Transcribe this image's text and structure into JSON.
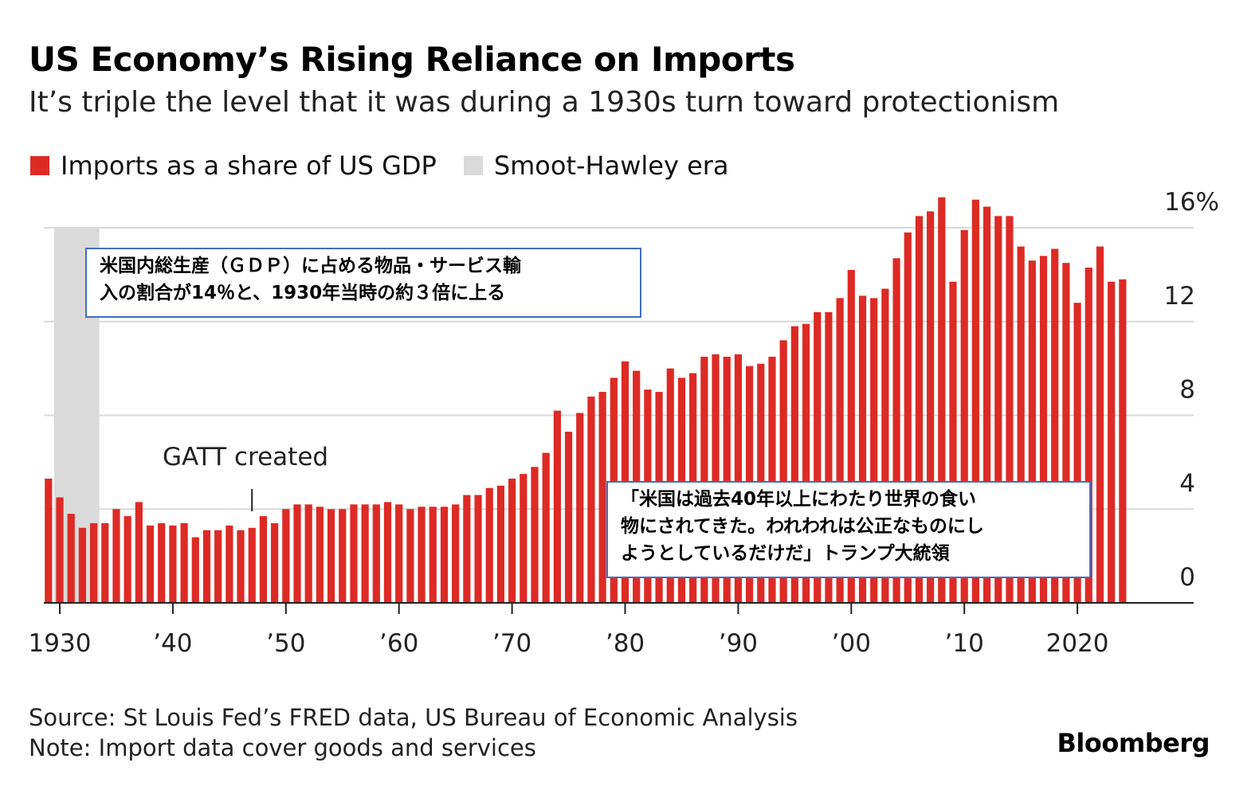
{
  "header": {
    "title": "US Economy’s Rising Reliance on Imports",
    "subtitle": "It’s triple the level that it was during a 1930s turn toward protectionism"
  },
  "legend": {
    "series_label": "Imports as a share of US GDP",
    "shade_label": "Smoot-Hawley era"
  },
  "colors": {
    "bar": "#dd2a25",
    "shade": "#dadada",
    "grid": "#d9d9d9",
    "callout_border": "#3f6fc3"
  },
  "chart_data": {
    "type": "bar",
    "title": "US Economy’s Rising Reliance on Imports",
    "subtitle": "It’s triple the level that it was during a 1930s turn toward protectionism",
    "series": [
      {
        "name": "Imports as a share of US GDP",
        "x": [
          1929,
          1930,
          1931,
          1932,
          1933,
          1934,
          1935,
          1936,
          1937,
          1938,
          1939,
          1940,
          1941,
          1942,
          1943,
          1944,
          1945,
          1946,
          1947,
          1948,
          1949,
          1950,
          1951,
          1952,
          1953,
          1954,
          1955,
          1956,
          1957,
          1958,
          1959,
          1960,
          1961,
          1962,
          1963,
          1964,
          1965,
          1966,
          1967,
          1968,
          1969,
          1970,
          1971,
          1972,
          1973,
          1974,
          1975,
          1976,
          1977,
          1978,
          1979,
          1980,
          1981,
          1982,
          1983,
          1984,
          1985,
          1986,
          1987,
          1988,
          1989,
          1990,
          1991,
          1992,
          1993,
          1994,
          1995,
          1996,
          1997,
          1998,
          1999,
          2000,
          2001,
          2002,
          2003,
          2004,
          2005,
          2006,
          2007,
          2008,
          2009,
          2010,
          2011,
          2012,
          2013,
          2014,
          2015,
          2016,
          2017,
          2018,
          2019,
          2020,
          2021,
          2022,
          2023,
          2024
        ],
        "values": [
          5.3,
          4.5,
          3.8,
          3.2,
          3.4,
          3.4,
          4.0,
          3.7,
          4.3,
          3.3,
          3.4,
          3.3,
          3.4,
          2.8,
          3.1,
          3.1,
          3.3,
          3.1,
          3.2,
          3.7,
          3.4,
          4.0,
          4.2,
          4.2,
          4.1,
          4.0,
          4.0,
          4.2,
          4.2,
          4.2,
          4.3,
          4.2,
          4.0,
          4.1,
          4.1,
          4.1,
          4.2,
          4.6,
          4.6,
          4.9,
          5.0,
          5.3,
          5.5,
          5.8,
          6.4,
          8.2,
          7.3,
          8.1,
          8.8,
          9.0,
          9.6,
          10.3,
          9.9,
          9.1,
          9.0,
          10.0,
          9.6,
          9.8,
          10.5,
          10.6,
          10.5,
          10.6,
          10.1,
          10.2,
          10.5,
          11.2,
          11.8,
          11.9,
          12.4,
          12.4,
          13.0,
          14.2,
          13.1,
          13.0,
          13.4,
          14.7,
          15.8,
          16.5,
          16.7,
          17.3,
          13.7,
          15.9,
          17.2,
          16.9,
          16.5,
          16.5,
          15.2,
          14.6,
          14.8,
          15.1,
          14.5,
          12.8,
          14.3,
          15.2,
          13.7,
          13.8
        ]
      }
    ],
    "shaded_band": {
      "label": "Smoot-Hawley era",
      "from": 1929.5,
      "to": 1933.5
    },
    "x_ticks": [
      {
        "value": 1930,
        "label": "1930"
      },
      {
        "value": 1940,
        "label": "’40"
      },
      {
        "value": 1950,
        "label": "’50"
      },
      {
        "value": 1960,
        "label": "’60"
      },
      {
        "value": 1970,
        "label": "’70"
      },
      {
        "value": 1980,
        "label": "’80"
      },
      {
        "value": 1990,
        "label": "’90"
      },
      {
        "value": 2000,
        "label": "’00"
      },
      {
        "value": 2010,
        "label": "’10"
      },
      {
        "value": 2020,
        "label": "2020"
      }
    ],
    "y_ticks": [
      {
        "value": 0,
        "label": "0"
      },
      {
        "value": 4,
        "label": "4"
      },
      {
        "value": 8,
        "label": "8"
      },
      {
        "value": 12,
        "label": "12"
      },
      {
        "value": 16,
        "label": "16%"
      }
    ],
    "ylim": [
      0,
      16.5
    ],
    "xlim": [
      1928.5,
      2026.5
    ],
    "grid": true,
    "y_axis_side": "right",
    "annotations": [
      {
        "text": "GATT created",
        "x": 1947
      }
    ]
  },
  "callouts": {
    "top": "米国内総生産（ＧＤＰ）に占める物品・サービス輸\n入の割合が14％と、1930年当時の約３倍に上る",
    "bottom": "「米国は過去40年以上にわたり世界の食い\n物にされてきた。われわれは公正なものにし\nようとしているだけだ」トランプ大統領"
  },
  "footer": {
    "source": "Source: St Louis Fed’s FRED data, US Bureau of Economic Analysis",
    "note": "Note: Import data cover goods and services",
    "brand": "Bloomberg"
  }
}
